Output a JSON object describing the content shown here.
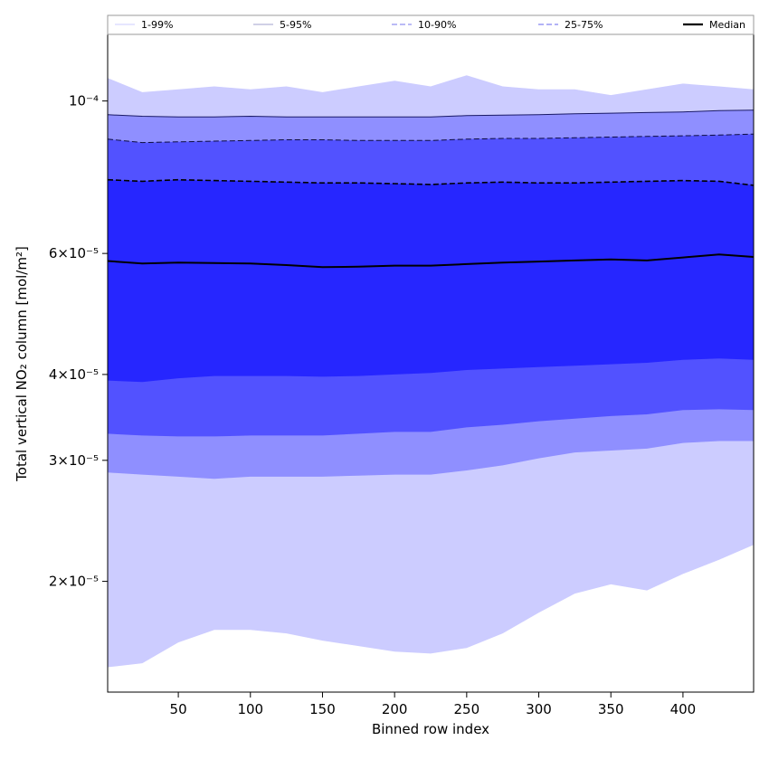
{
  "chart_data": {
    "type": "area",
    "title": "",
    "xlabel": "Binned row index",
    "ylabel": "Total vertical NO₂ column [mol/m²]",
    "y_scale": "log",
    "xlim": [
      1,
      449
    ],
    "ylim": [
      1.38e-05,
      0.000125
    ],
    "x_ticks": [
      50,
      100,
      150,
      200,
      250,
      300,
      350,
      400
    ],
    "x_tick_labels": [
      "50",
      "100",
      "150",
      "200",
      "250",
      "300",
      "350",
      "400"
    ],
    "y_ticks": [
      {
        "value": 0.0001,
        "label": "10⁻⁴"
      },
      {
        "value": 6e-05,
        "label": "6×10⁻⁵"
      },
      {
        "value": 4e-05,
        "label": "4×10⁻⁵"
      },
      {
        "value": 3e-05,
        "label": "3×10⁻⁵"
      },
      {
        "value": 2e-05,
        "label": "2×10⁻⁵"
      }
    ],
    "legend_position": "top, spanning plot width",
    "x": [
      1,
      25,
      50,
      75,
      100,
      125,
      150,
      175,
      200,
      225,
      250,
      275,
      300,
      325,
      350,
      375,
      400,
      425,
      449
    ],
    "bands": [
      {
        "name": "1-99%",
        "color": "#ccccff",
        "line_color": "#ccccff",
        "line_style": "solid",
        "lower": [
          1.5e-05,
          1.52e-05,
          1.63e-05,
          1.7e-05,
          1.7e-05,
          1.68e-05,
          1.64e-05,
          1.61e-05,
          1.58e-05,
          1.57e-05,
          1.6e-05,
          1.68e-05,
          1.8e-05,
          1.92e-05,
          1.98e-05,
          1.94e-05,
          2.05e-05,
          2.15e-05,
          2.26e-05
        ],
        "upper": [
          0.000108,
          0.000103,
          0.000104,
          0.000105,
          0.000104,
          0.000105,
          0.000103,
          0.000105,
          0.000107,
          0.000105,
          0.000109,
          0.000105,
          0.000104,
          0.000104,
          0.000102,
          0.000104,
          0.000106,
          0.000105,
          0.000104
        ]
      },
      {
        "name": "5-95%",
        "color": "#8f8fff",
        "line_color": "#1a1a66",
        "line_style": "solid",
        "lower": [
          2.88e-05,
          2.86e-05,
          2.84e-05,
          2.82e-05,
          2.84e-05,
          2.84e-05,
          2.84e-05,
          2.85e-05,
          2.86e-05,
          2.86e-05,
          2.9e-05,
          2.95e-05,
          3.02e-05,
          3.08e-05,
          3.1e-05,
          3.12e-05,
          3.18e-05,
          3.2e-05,
          3.2e-05
        ],
        "upper": [
          9.55e-05,
          9.5e-05,
          9.48e-05,
          9.48e-05,
          9.5e-05,
          9.48e-05,
          9.48e-05,
          9.48e-05,
          9.48e-05,
          9.48e-05,
          9.52e-05,
          9.54e-05,
          9.55e-05,
          9.58e-05,
          9.6e-05,
          9.62e-05,
          9.64e-05,
          9.68e-05,
          9.7e-05
        ]
      },
      {
        "name": "10-90%",
        "color": "#5252ff",
        "line_color": "#0d0d40",
        "line_style": "dashed",
        "lower": [
          3.28e-05,
          3.26e-05,
          3.25e-05,
          3.25e-05,
          3.26e-05,
          3.26e-05,
          3.26e-05,
          3.28e-05,
          3.3e-05,
          3.3e-05,
          3.35e-05,
          3.38e-05,
          3.42e-05,
          3.45e-05,
          3.48e-05,
          3.5e-05,
          3.55e-05,
          3.56e-05,
          3.55e-05
        ],
        "upper": [
          8.8e-05,
          8.7e-05,
          8.72e-05,
          8.74e-05,
          8.76e-05,
          8.78e-05,
          8.78e-05,
          8.76e-05,
          8.76e-05,
          8.76e-05,
          8.8e-05,
          8.82e-05,
          8.82e-05,
          8.84e-05,
          8.86e-05,
          8.88e-05,
          8.9e-05,
          8.92e-05,
          8.95e-05
        ]
      },
      {
        "name": "25-75%",
        "color": "#2626ff",
        "line_color": "#000000",
        "line_style": "dashed",
        "lower": [
          3.92e-05,
          3.9e-05,
          3.95e-05,
          3.98e-05,
          3.98e-05,
          3.98e-05,
          3.97e-05,
          3.98e-05,
          4e-05,
          4.02e-05,
          4.06e-05,
          4.08e-05,
          4.1e-05,
          4.12e-05,
          4.14e-05,
          4.16e-05,
          4.2e-05,
          4.22e-05,
          4.2e-05
        ],
        "upper": [
          7.68e-05,
          7.64e-05,
          7.68e-05,
          7.66e-05,
          7.64e-05,
          7.62e-05,
          7.6e-05,
          7.6e-05,
          7.58e-05,
          7.56e-05,
          7.6e-05,
          7.62e-05,
          7.6e-05,
          7.6e-05,
          7.62e-05,
          7.64e-05,
          7.66e-05,
          7.64e-05,
          7.54e-05
        ]
      }
    ],
    "median": {
      "name": "Median",
      "color": "#000000",
      "values": [
        5.85e-05,
        5.8e-05,
        5.82e-05,
        5.81e-05,
        5.8e-05,
        5.77e-05,
        5.73e-05,
        5.74e-05,
        5.76e-05,
        5.76e-05,
        5.79e-05,
        5.82e-05,
        5.84e-05,
        5.86e-05,
        5.88e-05,
        5.86e-05,
        5.92e-05,
        5.98e-05,
        5.93e-05
      ]
    }
  }
}
